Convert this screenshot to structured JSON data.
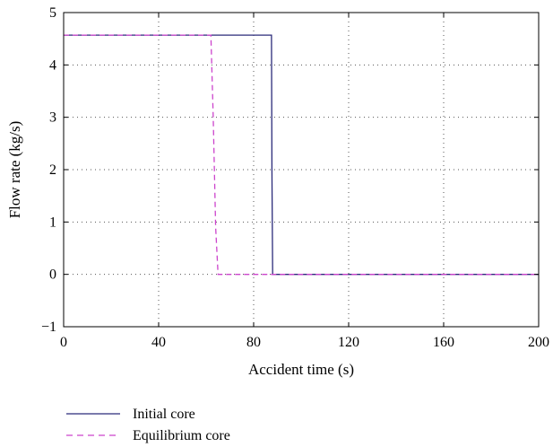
{
  "chart_data": {
    "type": "line",
    "title": "",
    "xlabel": "Accident time (s)",
    "ylabel": "Flow rate (kg/s)",
    "xlim": [
      0,
      200
    ],
    "ylim": [
      -1,
      5
    ],
    "xticks": [
      0,
      40,
      80,
      120,
      160,
      200
    ],
    "yticks": [
      -1,
      0,
      1,
      2,
      3,
      4,
      5
    ],
    "xtick_labels": [
      "0",
      "40",
      "80",
      "120",
      "160",
      "200"
    ],
    "ytick_labels": [
      "−1",
      "0",
      "1",
      "2",
      "3",
      "4",
      "5"
    ],
    "grid": true,
    "grid_style": "dotted",
    "legend_position": "bottom-left, below the plot",
    "series": [
      {
        "name": "Initial core",
        "color": "#2b2b7a",
        "dash": "solid",
        "x": [
          0,
          87.5,
          87.7,
          88.0,
          200
        ],
        "y": [
          4.57,
          4.57,
          2.0,
          0.0,
          0.0
        ]
      },
      {
        "name": "Equilibrium core",
        "color": "#cc44cc",
        "dash": "dashed",
        "x": [
          0,
          62,
          63,
          64,
          65,
          200
        ],
        "y": [
          4.57,
          4.57,
          3.0,
          0.9,
          0.0,
          0.0
        ]
      }
    ]
  }
}
